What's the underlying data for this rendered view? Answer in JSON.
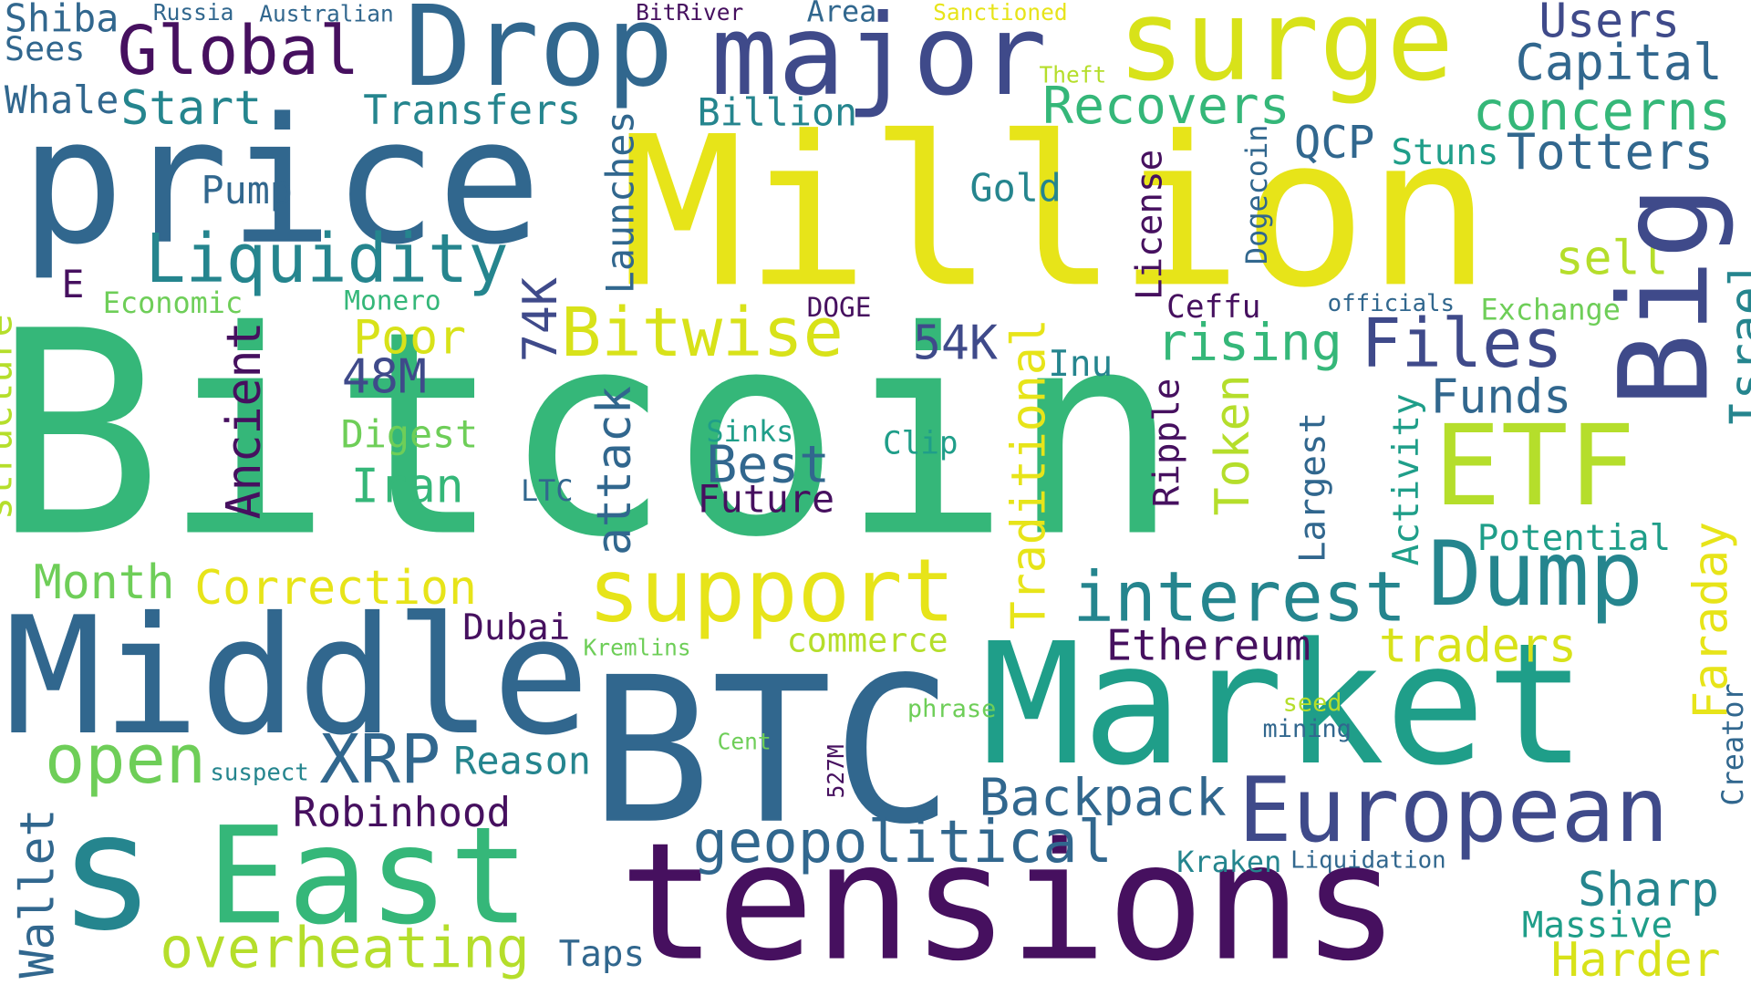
{
  "palette": {
    "dark_purple": "#46105f",
    "indigo": "#3f4a8a",
    "steel_blue": "#31678e",
    "teal": "#25858e",
    "green_teal": "#1f9e89",
    "green": "#35b779",
    "light_green": "#6ece58",
    "yellow_green": "#b5de2b",
    "yellow": "#e7e419"
  },
  "words": [
    {
      "text": "Bitcoin",
      "color": "#35b779"
    },
    {
      "text": "Million",
      "color": "#e7e419"
    },
    {
      "text": "price",
      "color": "#31678e"
    },
    {
      "text": "Market",
      "color": "#1f9e89"
    },
    {
      "text": "BTC",
      "color": "#31678e"
    },
    {
      "text": "tensions",
      "color": "#46105f"
    },
    {
      "text": "Middle",
      "color": "#31678e"
    },
    {
      "text": "East",
      "color": "#35b779"
    },
    {
      "text": "s",
      "color": "#25858e"
    },
    {
      "text": "Drop",
      "color": "#31678e"
    },
    {
      "text": "major",
      "color": "#3f4a8a"
    },
    {
      "text": "surge",
      "color": "#d8e219"
    },
    {
      "text": "Big",
      "color": "#3f4a8a"
    },
    {
      "text": "ETF",
      "color": "#b5de2b"
    },
    {
      "text": "European",
      "color": "#3f4a8a"
    },
    {
      "text": "support",
      "color": "#e7e419"
    },
    {
      "text": "Dump",
      "color": "#25858e"
    },
    {
      "text": "interest",
      "color": "#25858e"
    },
    {
      "text": "Global",
      "color": "#46105f"
    },
    {
      "text": "Liquidity",
      "color": "#25858e"
    },
    {
      "text": "Bitwise",
      "color": "#d8e219"
    },
    {
      "text": "Files",
      "color": "#3f4a8a"
    },
    {
      "text": "XRP",
      "color": "#31678e"
    },
    {
      "text": "open",
      "color": "#6ece58"
    },
    {
      "text": "geopolitical",
      "color": "#31678e"
    },
    {
      "text": "Backpack",
      "color": "#31678e"
    },
    {
      "text": "overheating",
      "color": "#b5de2b"
    },
    {
      "text": "Recovers",
      "color": "#35b779"
    },
    {
      "text": "concerns",
      "color": "#35b779"
    },
    {
      "text": "Totters",
      "color": "#31678e"
    },
    {
      "text": "Capital",
      "color": "#31678e"
    },
    {
      "text": "Users",
      "color": "#3f4a8a"
    },
    {
      "text": "Start",
      "color": "#25858e"
    },
    {
      "text": "Transfers",
      "color": "#25858e"
    },
    {
      "text": "Billion",
      "color": "#25858e"
    },
    {
      "text": "Whale",
      "color": "#31678e"
    },
    {
      "text": "Shiba",
      "color": "#31678e"
    },
    {
      "text": "Sees",
      "color": "#31678e"
    },
    {
      "text": "Russia",
      "color": "#31678e"
    },
    {
      "text": "Australian",
      "color": "#31678e"
    },
    {
      "text": "BitRiver",
      "color": "#46105f"
    },
    {
      "text": "Area",
      "color": "#31678e"
    },
    {
      "text": "Sanctioned",
      "color": "#e7e419"
    },
    {
      "text": "Theft",
      "color": "#b5de2b"
    },
    {
      "text": "Pump",
      "color": "#31678e"
    },
    {
      "text": "Gold",
      "color": "#25858e"
    },
    {
      "text": "QCP",
      "color": "#31678e"
    },
    {
      "text": "Stuns",
      "color": "#1f9e89"
    },
    {
      "text": "sell",
      "color": "#b5de2b"
    },
    {
      "text": "Exchange",
      "color": "#6ece58"
    },
    {
      "text": "officials",
      "color": "#31678e"
    },
    {
      "text": "Ceffu",
      "color": "#46105f"
    },
    {
      "text": "DOGE",
      "color": "#46105f"
    },
    {
      "text": "Monero",
      "color": "#35b779"
    },
    {
      "text": "Economic",
      "color": "#6ece58"
    },
    {
      "text": "E",
      "color": "#46105f"
    },
    {
      "text": "Poor",
      "color": "#d8e219"
    },
    {
      "text": "48M",
      "color": "#3f4a8a"
    },
    {
      "text": "54K",
      "color": "#3f4a8a"
    },
    {
      "text": "rising",
      "color": "#35b779"
    },
    {
      "text": "Funds",
      "color": "#31678e"
    },
    {
      "text": "Inu",
      "color": "#25858e"
    },
    {
      "text": "Digest",
      "color": "#6ece58"
    },
    {
      "text": "Iran",
      "color": "#35b779"
    },
    {
      "text": "LTC",
      "color": "#31678e"
    },
    {
      "text": "Sinks",
      "color": "#1f9e89"
    },
    {
      "text": "Best",
      "color": "#31678e"
    },
    {
      "text": "Future",
      "color": "#46105f"
    },
    {
      "text": "Clip",
      "color": "#1f9e89"
    },
    {
      "text": "Potential",
      "color": "#1f9e89"
    },
    {
      "text": "Month",
      "color": "#6ece58"
    },
    {
      "text": "Correction",
      "color": "#e7e419"
    },
    {
      "text": "Dubai",
      "color": "#46105f"
    },
    {
      "text": "Kremlins",
      "color": "#6ece58"
    },
    {
      "text": "commerce",
      "color": "#b5de2b"
    },
    {
      "text": "Ethereum",
      "color": "#46105f"
    },
    {
      "text": "traders",
      "color": "#d8e219"
    },
    {
      "text": "phrase",
      "color": "#6ece58"
    },
    {
      "text": "seed",
      "color": "#b5de2b"
    },
    {
      "text": "mining",
      "color": "#31678e"
    },
    {
      "text": "Cent",
      "color": "#6ece58"
    },
    {
      "text": "suspect",
      "color": "#25858e"
    },
    {
      "text": "Reason",
      "color": "#25858e"
    },
    {
      "text": "Robinhood",
      "color": "#46105f"
    },
    {
      "text": "Kraken",
      "color": "#25858e"
    },
    {
      "text": "Liquidation",
      "color": "#31678e"
    },
    {
      "text": "Sharp",
      "color": "#25858e"
    },
    {
      "text": "Massive",
      "color": "#1f9e89"
    },
    {
      "text": "Harder",
      "color": "#d8e219"
    },
    {
      "text": "Taps",
      "color": "#31678e"
    },
    {
      "text": "Launches",
      "color": "#31678e"
    },
    {
      "text": "Dogecoin",
      "color": "#31678e"
    },
    {
      "text": "License",
      "color": "#46105f"
    },
    {
      "text": "74K",
      "color": "#3f4a8a"
    },
    {
      "text": "Ancient",
      "color": "#46105f"
    },
    {
      "text": "structure",
      "color": "#b5de2b"
    },
    {
      "text": "attack",
      "color": "#31678e"
    },
    {
      "text": "Traditional",
      "color": "#e7e419"
    },
    {
      "text": "Ripple",
      "color": "#46105f"
    },
    {
      "text": "Token",
      "color": "#b5de2b"
    },
    {
      "text": "Largest",
      "color": "#31678e"
    },
    {
      "text": "Activity",
      "color": "#1f9e89"
    },
    {
      "text": "Israel",
      "color": "#25858e"
    },
    {
      "text": "Faraday",
      "color": "#e7e419"
    },
    {
      "text": "Creator",
      "color": "#31678e"
    },
    {
      "text": "527M",
      "color": "#46105f"
    },
    {
      "text": "Wallet",
      "color": "#31678e"
    }
  ]
}
